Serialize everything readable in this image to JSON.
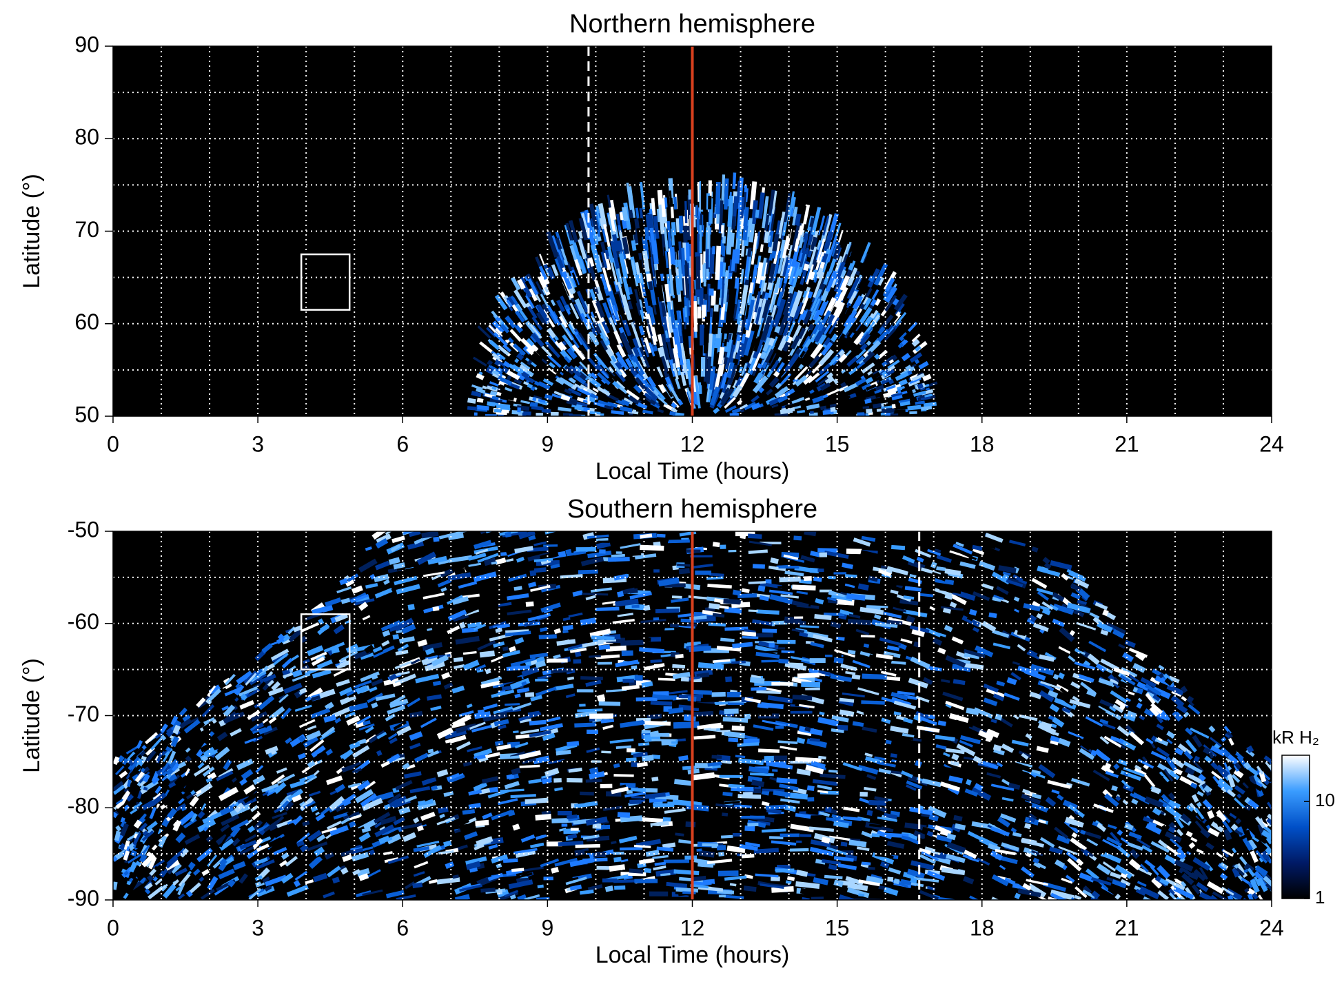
{
  "chart_data": [
    {
      "type": "heatmap",
      "title": "Northern hemisphere",
      "x_label": "Local Time (hours)",
      "y_label": "Latitude (°)",
      "xlim": [
        0,
        24
      ],
      "xticks": [
        0,
        3,
        6,
        9,
        12,
        15,
        18,
        21,
        24
      ],
      "ylim": [
        50,
        90
      ],
      "yticks": [
        50,
        60,
        70,
        80,
        90
      ],
      "grid": true,
      "xgrid": [
        1,
        2,
        3,
        4,
        5,
        6,
        7,
        8,
        9,
        10,
        11,
        12,
        13,
        14,
        15,
        16,
        17,
        18,
        19,
        20,
        21,
        22,
        23
      ],
      "ygrid": [
        55,
        60,
        65,
        70,
        75,
        80,
        85
      ],
      "vlines": [
        {
          "x": 12,
          "color": "#d9401e",
          "style": "solid"
        },
        {
          "x": 9.85,
          "color": "#ffffff",
          "style": "dashed"
        }
      ],
      "boxes": [
        {
          "xlim": [
            3.9,
            4.9
          ],
          "ylim": [
            61.5,
            67.5
          ],
          "color": "#ffffff"
        }
      ]
    },
    {
      "type": "heatmap",
      "title": "Southern hemisphere",
      "x_label": "Local Time (hours)",
      "y_label": "Latitude (°)",
      "xlim": [
        0,
        24
      ],
      "xticks": [
        0,
        3,
        6,
        9,
        12,
        15,
        18,
        21,
        24
      ],
      "ylim": [
        -90,
        -50
      ],
      "yticks": [
        -90,
        -80,
        -70,
        -60,
        -50
      ],
      "grid": true,
      "xgrid": [
        1,
        2,
        3,
        4,
        5,
        6,
        7,
        8,
        9,
        10,
        11,
        12,
        13,
        14,
        15,
        16,
        17,
        18,
        19,
        20,
        21,
        22,
        23
      ],
      "ygrid": [
        -85,
        -80,
        -75,
        -70,
        -65,
        -60,
        -55
      ],
      "vlines": [
        {
          "x": 12,
          "color": "#d9401e",
          "style": "solid"
        },
        {
          "x": 16.7,
          "color": "#ffffff",
          "style": "dashed"
        }
      ],
      "boxes": [
        {
          "xlim": [
            3.9,
            4.9
          ],
          "ylim": [
            -65,
            -59
          ],
          "color": "#ffffff"
        }
      ],
      "colorbar": {
        "label": "kR H₂",
        "lim": [
          1,
          30
        ],
        "ticks": [
          1,
          10
        ],
        "log": true,
        "colors": [
          "#000000",
          "#001a66",
          "#0050c8",
          "#3a9cff",
          "#ffffff"
        ]
      }
    }
  ]
}
